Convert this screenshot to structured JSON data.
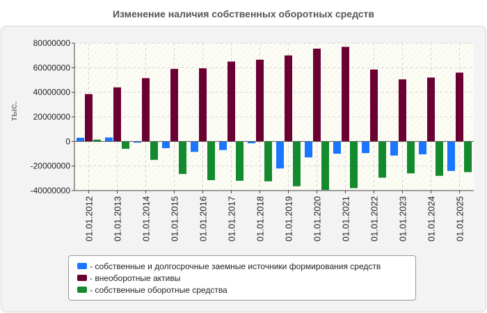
{
  "chart_data": {
    "type": "bar",
    "title": "Изменение наличия собственных оборотных средств",
    "ylabel": "тыс.",
    "xlabel": "",
    "ylim": [
      -40000000,
      80000000
    ],
    "yticks": [
      80000000,
      60000000,
      40000000,
      20000000,
      0,
      -20000000,
      -40000000
    ],
    "ytick_labels": [
      "80000000",
      "60000000",
      "40000000",
      "20000000",
      "0",
      "-20000000",
      "-40000000"
    ],
    "grid": true,
    "legend_position": "bottom",
    "categories": [
      "01.01.2012",
      "01.01.2013",
      "01.01.2014",
      "01.01.2015",
      "01.01.2016",
      "01.01.2017",
      "01.01.2018",
      "01.01.2019",
      "01.01.2020",
      "01.01.2021",
      "01.01.2022",
      "01.01.2023",
      "01.01.2024",
      "01.01.2025"
    ],
    "series": [
      {
        "name": "- собственные и долгосрочные заемные источники формирования средств",
        "color": "#1a75ff",
        "values": [
          3000000,
          3200000,
          -1000000,
          -5500000,
          -8500000,
          -7000000,
          -1500000,
          -22000000,
          -13000000,
          -10000000,
          -9500000,
          -11500000,
          -10500000,
          -24000000
        ]
      },
      {
        "name": "- внеоборотные активы",
        "color": "#6b0033",
        "values": [
          38500000,
          44000000,
          51500000,
          59000000,
          59500000,
          65000000,
          66500000,
          70000000,
          75500000,
          77000000,
          58500000,
          50500000,
          52000000,
          56000000
        ]
      },
      {
        "name": "- собственные оборотные средства",
        "color": "#138a2e",
        "values": [
          1500000,
          -6000000,
          -15000000,
          -26500000,
          -31500000,
          -32000000,
          -32500000,
          -36500000,
          -39500000,
          -38000000,
          -29500000,
          -26000000,
          -28000000,
          -25000000
        ]
      }
    ]
  }
}
